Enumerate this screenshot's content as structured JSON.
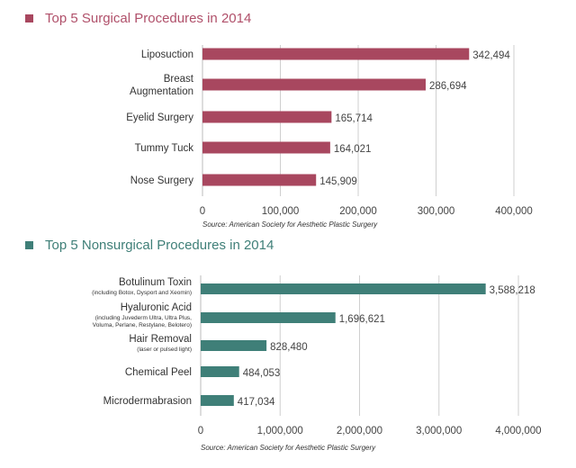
{
  "chart_data": [
    {
      "type": "bar",
      "orientation": "horizontal",
      "title": "Top 5 Surgical Procedures in 2014",
      "categories": [
        [
          "Liposuction"
        ],
        [
          "Breast",
          "Augmentation"
        ],
        [
          "Eyelid Surgery"
        ],
        [
          "Tummy Tuck"
        ],
        [
          "Nose Surgery"
        ]
      ],
      "values": [
        342494,
        286694,
        165714,
        164021,
        145909
      ],
      "value_labels": [
        "342,494",
        "286,694",
        "165,714",
        "164,021",
        "145,909"
      ],
      "xlim": [
        0,
        400000
      ],
      "xticks": [
        0,
        100000,
        200000,
        300000,
        400000
      ],
      "xtick_labels": [
        "0",
        "100,000",
        "200,000",
        "300,000",
        "400,000"
      ],
      "source": "Source: American Society for Aesthetic Plastic Surgery",
      "grid": "vertical",
      "color": "#a8475f",
      "title_color": "#b0506a"
    },
    {
      "type": "bar",
      "orientation": "horizontal",
      "title": "Top 5 Nonsurgical Procedures in 2014",
      "categories": [
        [
          "Botulinum Toxin"
        ],
        [
          "Hyaluronic Acid"
        ],
        [
          "Hair Removal"
        ],
        [
          "Chemical Peel"
        ],
        [
          "Microdermabrasion"
        ]
      ],
      "subnotes": [
        [
          "(including Botox, Dysport and Xeomin)"
        ],
        [
          "(including Juvederm Ultra, Ultra Plus,",
          "Voluma, Perlane, Restylane, Belotero)"
        ],
        [
          "(laser or pulsed light)"
        ],
        [],
        []
      ],
      "values": [
        3588218,
        1696621,
        828480,
        484053,
        417034
      ],
      "value_labels": [
        "3,588,218",
        "1,696,621",
        "828,480",
        "484,053",
        "417,034"
      ],
      "xlim": [
        0,
        4000000
      ],
      "xticks": [
        0,
        1000000,
        2000000,
        3000000,
        4000000
      ],
      "xtick_labels": [
        "0",
        "1,000,000",
        "2,000,000",
        "3,000,000",
        "4,000,000"
      ],
      "source": "Source: American Society for Aesthetic Plastic Surgery",
      "grid": "vertical",
      "color": "#3f7f78",
      "title_color": "#3f7f78"
    }
  ]
}
